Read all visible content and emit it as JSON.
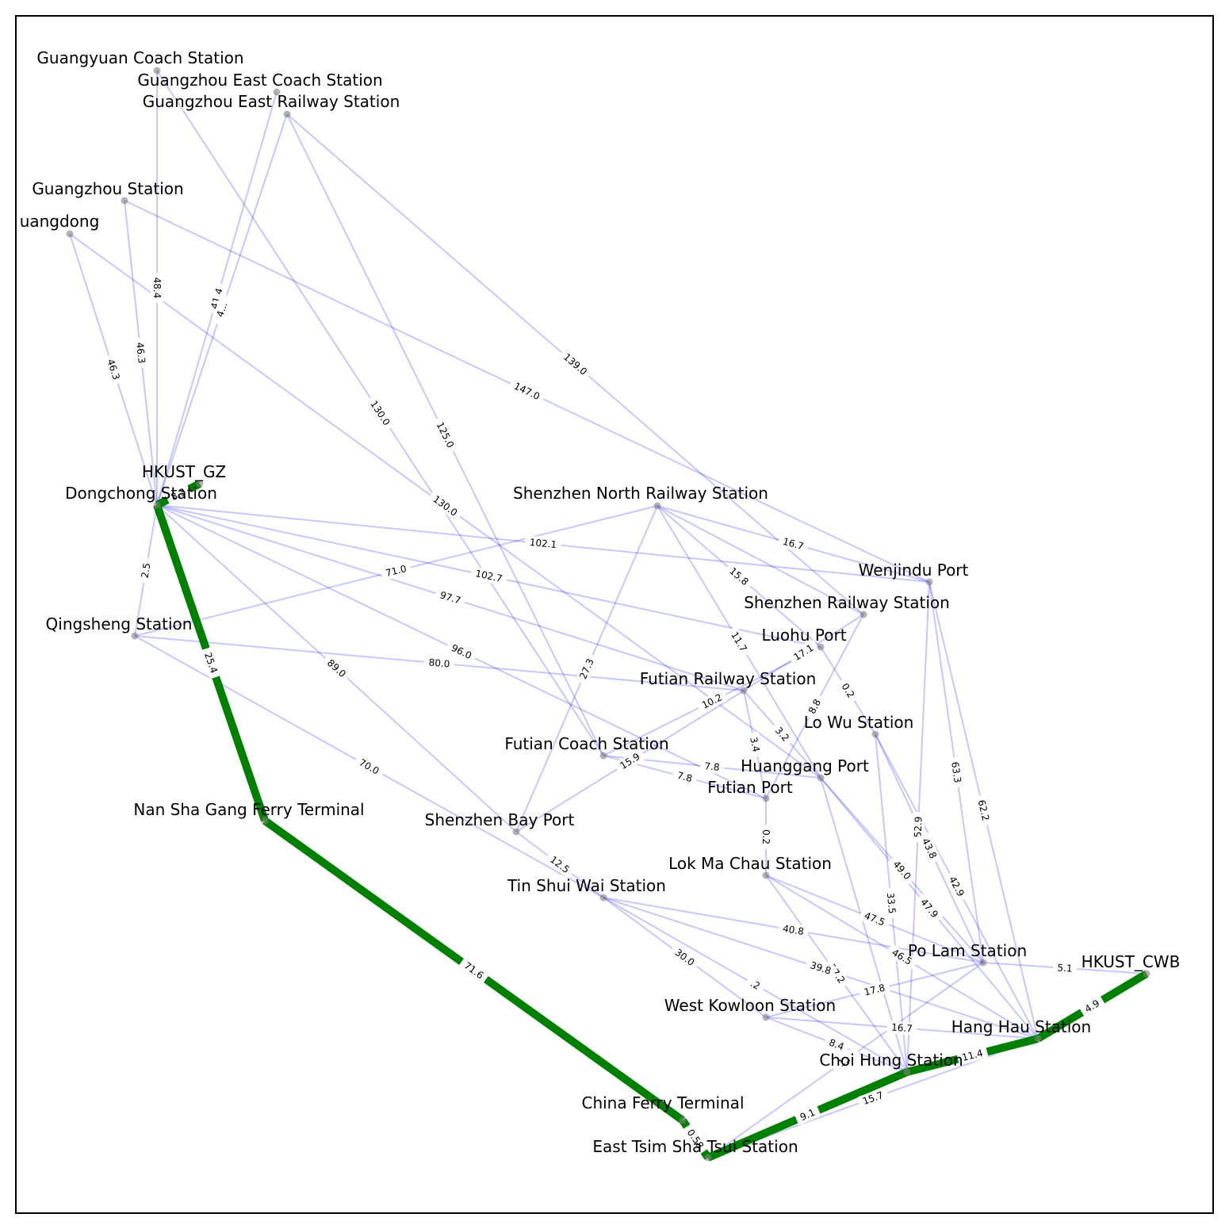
{
  "colors": {
    "edge": "#0000ff",
    "path": "#008000",
    "node": "#808080",
    "frame": "#000000"
  },
  "nodes": [
    {
      "id": "guangyuan",
      "label": "Guangyuan Coach Station"
    },
    {
      "id": "gz_east_coach",
      "label": "Guangzhou East Coach Station"
    },
    {
      "id": "gz_east_rail",
      "label": "Guangzhou East Railway Station"
    },
    {
      "id": "gz_station",
      "label": "Guangzhou Station"
    },
    {
      "id": "guangdong",
      "label": "uangdong"
    },
    {
      "id": "hkust_gz",
      "label": "HKUST_GZ"
    },
    {
      "id": "dongchong",
      "label": "Dongchong Station"
    },
    {
      "id": "qingsheng",
      "label": "Qingsheng Station"
    },
    {
      "id": "nansha",
      "label": "Nan Sha Gang Ferry Terminal"
    },
    {
      "id": "china_ferry",
      "label": "China Ferry Terminal"
    },
    {
      "id": "etst",
      "label": "East Tsim Sha Tsui Station"
    },
    {
      "id": "sz_north",
      "label": "Shenzhen North Railway Station"
    },
    {
      "id": "wenjindu",
      "label": "Wenjindu Port"
    },
    {
      "id": "sz_rail",
      "label": "Shenzhen Railway Station"
    },
    {
      "id": "luohu",
      "label": "Luohu Port"
    },
    {
      "id": "futian_rail",
      "label": "Futian Railway Station"
    },
    {
      "id": "lowu",
      "label": "Lo Wu Station"
    },
    {
      "id": "futian_coach",
      "label": "Futian Coach Station"
    },
    {
      "id": "huanggang",
      "label": "Huanggang Port"
    },
    {
      "id": "futian_port",
      "label": "Futian Port"
    },
    {
      "id": "sz_bay",
      "label": "Shenzhen Bay Port"
    },
    {
      "id": "lokmachau",
      "label": "Lok Ma Chau Station"
    },
    {
      "id": "tinshuiwai",
      "label": "Tin Shui Wai Station"
    },
    {
      "id": "polam",
      "label": "Po Lam Station"
    },
    {
      "id": "hkust_cwb",
      "label": "HKUST_CWB"
    },
    {
      "id": "west_kowloon",
      "label": "West Kowloon Station"
    },
    {
      "id": "hanghau",
      "label": "Hang Hau Station"
    },
    {
      "id": "choihung",
      "label": "Choi Hung Station"
    }
  ],
  "edges": [
    {
      "from": "guangyuan",
      "to": "dongchong",
      "label": "48.4"
    },
    {
      "from": "gz_station",
      "to": "dongchong",
      "label": "46.3"
    },
    {
      "from": "guangdong",
      "to": "dongchong",
      "label": "46.3"
    },
    {
      "from": "gz_east_coach",
      "to": "dongchong",
      "label": "41.4"
    },
    {
      "from": "gz_east_rail",
      "to": "dongchong",
      "label": "4..."
    },
    {
      "from": "guangyuan",
      "to": "futian_coach",
      "label": "130.0"
    },
    {
      "from": "gz_east_rail",
      "to": "futian_coach",
      "label": "125.0"
    },
    {
      "from": "gz_station",
      "to": "wenjindu",
      "label": "147.0"
    },
    {
      "from": "gz_east_rail",
      "to": "sz_rail",
      "label": "139.0"
    },
    {
      "from": "guangdong",
      "to": "huanggang",
      "label": "130.0"
    },
    {
      "from": "dongchong",
      "to": "qingsheng",
      "label": "2.5"
    },
    {
      "from": "dongchong",
      "to": "wenjindu",
      "label": "102.1"
    },
    {
      "from": "dongchong",
      "to": "luohu",
      "label": "102.7"
    },
    {
      "from": "dongchong",
      "to": "futian_rail",
      "label": "97.7"
    },
    {
      "from": "dongchong",
      "to": "futian_port",
      "label": "96.0"
    },
    {
      "from": "dongchong",
      "to": "sz_bay",
      "label": "89.0"
    },
    {
      "from": "qingsheng",
      "to": "sz_north",
      "label": "71.0"
    },
    {
      "from": "qingsheng",
      "to": "futian_rail",
      "label": "80.0"
    },
    {
      "from": "qingsheng",
      "to": "tinshuiwai",
      "label": "70.0"
    },
    {
      "from": "sz_north",
      "to": "wenjindu",
      "label": "16.7"
    },
    {
      "from": "sz_north",
      "to": "luohu",
      "label": "15.8"
    },
    {
      "from": "sz_north",
      "to": "sz_rail",
      "label": ""
    },
    {
      "from": "sz_north",
      "to": "huanggang",
      "label": "11.7"
    },
    {
      "from": "sz_north",
      "to": "sz_bay",
      "label": "27.3"
    },
    {
      "from": "sz_rail",
      "to": "futian_rail",
      "label": "17.1"
    },
    {
      "from": "sz_rail",
      "to": "futian_port",
      "label": "8.8"
    },
    {
      "from": "luohu",
      "to": "futian_coach",
      "label": "10.2"
    },
    {
      "from": "luohu",
      "to": "lowu",
      "label": "0.2"
    },
    {
      "from": "futian_rail",
      "to": "futian_port",
      "label": "3.4"
    },
    {
      "from": "futian_rail",
      "to": "huanggang",
      "label": "3.2"
    },
    {
      "from": "futian_rail",
      "to": "sz_bay",
      "label": "15.9"
    },
    {
      "from": "futian_coach",
      "to": "huanggang",
      "label": "7.8"
    },
    {
      "from": "futian_coach",
      "to": "futian_port",
      "label": "7.8"
    },
    {
      "from": "futian_port",
      "to": "lokmachau",
      "label": "0.2"
    },
    {
      "from": "sz_bay",
      "to": "tinshuiwai",
      "label": "12.5"
    },
    {
      "from": "wenjindu",
      "to": "polam",
      "label": "63.3"
    },
    {
      "from": "wenjindu",
      "to": "hanghau",
      "label": "62.2"
    },
    {
      "from": "wenjindu",
      "to": "choihung",
      "label": "52.9"
    },
    {
      "from": "lowu",
      "to": "polam",
      "label": "43.8"
    },
    {
      "from": "lowu",
      "to": "hanghau",
      "label": "42.9"
    },
    {
      "from": "lowu",
      "to": "choihung",
      "label": "33.5"
    },
    {
      "from": "huanggang",
      "to": "polam",
      "label": "49.0"
    },
    {
      "from": "huanggang",
      "to": "hanghau",
      "label": "47.9"
    },
    {
      "from": "huanggang",
      "to": "choihung",
      "label": ""
    },
    {
      "from": "lokmachau",
      "to": "polam",
      "label": "47.5"
    },
    {
      "from": "lokmachau",
      "to": "hanghau",
      "label": "46.5"
    },
    {
      "from": "lokmachau",
      "to": "choihung",
      "label": "37.2"
    },
    {
      "from": "tinshuiwai",
      "to": "polam",
      "label": "40.8"
    },
    {
      "from": "tinshuiwai",
      "to": "hanghau",
      "label": "39.8"
    },
    {
      "from": "tinshuiwai",
      "to": "choihung",
      "label": ".2"
    },
    {
      "from": "tinshuiwai",
      "to": "west_kowloon",
      "label": "30.0"
    },
    {
      "from": "west_kowloon",
      "to": "polam",
      "label": "17.8"
    },
    {
      "from": "west_kowloon",
      "to": "hanghau",
      "label": "16.7"
    },
    {
      "from": "west_kowloon",
      "to": "choihung",
      "label": "8.4"
    },
    {
      "from": "polam",
      "to": "hkust_cwb",
      "label": "5.1"
    },
    {
      "from": "polam",
      "to": "etst",
      "label": "1..."
    },
    {
      "from": "hanghau",
      "to": "etst",
      "label": "15.7"
    }
  ],
  "path_edges": [
    {
      "from": "hkust_gz",
      "to": "dongchong",
      "label": "8.3"
    },
    {
      "from": "dongchong",
      "to": "nansha",
      "label": "25.4"
    },
    {
      "from": "nansha",
      "to": "china_ferry",
      "label": "71.6"
    },
    {
      "from": "china_ferry",
      "to": "etst",
      "label": "0.58"
    },
    {
      "from": "etst",
      "to": "choihung",
      "label": "9.1"
    },
    {
      "from": "choihung",
      "to": "hanghau",
      "label": "11.4"
    },
    {
      "from": "hanghau",
      "to": "hkust_cwb",
      "label": "4.9"
    }
  ]
}
